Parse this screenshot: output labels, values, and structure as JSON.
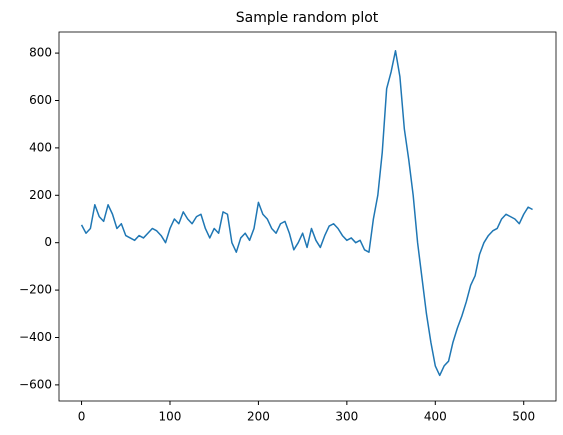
{
  "chart_data": {
    "type": "line",
    "title": "Sample random plot",
    "x": [
      0,
      5,
      10,
      15,
      20,
      25,
      30,
      35,
      40,
      45,
      50,
      55,
      60,
      65,
      70,
      75,
      80,
      85,
      90,
      95,
      100,
      105,
      110,
      115,
      120,
      125,
      130,
      135,
      140,
      145,
      150,
      155,
      160,
      165,
      170,
      175,
      180,
      185,
      190,
      195,
      200,
      205,
      210,
      215,
      220,
      225,
      230,
      235,
      240,
      245,
      250,
      255,
      260,
      265,
      270,
      275,
      280,
      285,
      290,
      295,
      300,
      305,
      310,
      315,
      320,
      325,
      330,
      335,
      340,
      345,
      350,
      355,
      360,
      365,
      370,
      375,
      380,
      385,
      390,
      395,
      400,
      405,
      410,
      415,
      420,
      425,
      430,
      435,
      440,
      445,
      450,
      455,
      460,
      465,
      470,
      475,
      480,
      485,
      490,
      495,
      500,
      505,
      510
    ],
    "series": [
      {
        "color": "#1f77b4",
        "values": [
          75,
          40,
          60,
          160,
          110,
          90,
          160,
          120,
          60,
          80,
          30,
          20,
          10,
          30,
          20,
          40,
          60,
          50,
          30,
          0,
          60,
          100,
          80,
          130,
          100,
          80,
          110,
          120,
          60,
          20,
          60,
          40,
          130,
          120,
          0,
          -40,
          20,
          40,
          10,
          60,
          170,
          120,
          100,
          60,
          40,
          80,
          90,
          40,
          -30,
          0,
          40,
          -20,
          60,
          10,
          -20,
          30,
          70,
          80,
          60,
          30,
          10,
          20,
          0,
          10,
          -30,
          -40,
          100,
          200,
          380,
          650,
          720,
          810,
          700,
          480,
          350,
          200,
          0,
          -150,
          -300,
          -420,
          -520,
          -560,
          -520,
          -500,
          -420,
          -360,
          -310,
          -250,
          -180,
          -140,
          -50,
          0,
          30,
          50,
          60,
          100,
          120,
          110,
          100,
          80,
          120,
          150,
          140
        ]
      }
    ],
    "xlim": [
      -25.5,
      536.5
    ],
    "ylim": [
      -668,
      889
    ],
    "xticks": [
      0,
      100,
      200,
      300,
      400,
      500
    ],
    "yticks": [
      {
        "value": -600,
        "label": "−600"
      },
      {
        "value": -400,
        "label": "−400"
      },
      {
        "value": -200,
        "label": "−200"
      },
      0,
      200,
      400,
      600,
      800
    ]
  }
}
